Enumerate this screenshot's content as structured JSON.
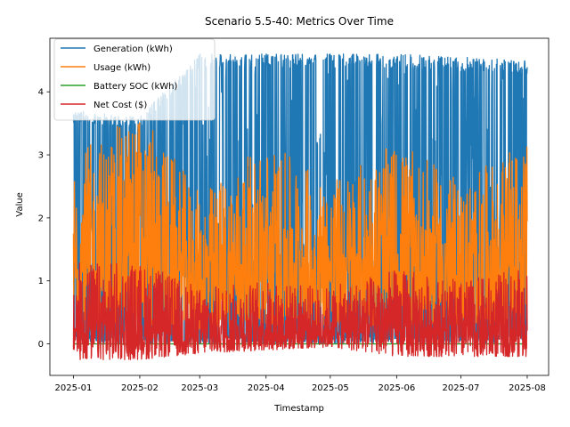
{
  "chart_data": {
    "type": "line",
    "title": "Scenario 5.5-40: Metrics Over Time",
    "xlabel": "Timestamp",
    "ylabel": "Value",
    "x_range": [
      "2025-01-01",
      "2025-08-01"
    ],
    "xlim": [
      "2024-12-21",
      "2025-08-11"
    ],
    "ylim": [
      -0.5,
      4.85
    ],
    "x_ticks": [
      {
        "date": "2025-01-01",
        "label": "2025-01"
      },
      {
        "date": "2025-02-01",
        "label": "2025-02"
      },
      {
        "date": "2025-03-01",
        "label": "2025-03"
      },
      {
        "date": "2025-04-01",
        "label": "2025-04"
      },
      {
        "date": "2025-05-01",
        "label": "2025-05"
      },
      {
        "date": "2025-06-01",
        "label": "2025-06"
      },
      {
        "date": "2025-07-01",
        "label": "2025-07"
      },
      {
        "date": "2025-08-01",
        "label": "2025-08"
      }
    ],
    "y_ticks": [
      {
        "value": 0,
        "label": "0"
      },
      {
        "value": 1,
        "label": "1"
      },
      {
        "value": 2,
        "label": "2"
      },
      {
        "value": 3,
        "label": "3"
      },
      {
        "value": 4,
        "label": "4"
      }
    ],
    "grid": false,
    "legend_position": "top-left",
    "series": [
      {
        "name": "Generation (kWh)",
        "color": "#1f77b4",
        "sampling": "monthly envelope of a dense hourly-like signal",
        "x": [
          "2025-01-01",
          "2025-02-01",
          "2025-03-01",
          "2025-04-01",
          "2025-05-01",
          "2025-06-01",
          "2025-07-01",
          "2025-08-01"
        ],
        "y_min": [
          0.0,
          0.0,
          0.0,
          0.0,
          0.0,
          0.0,
          0.0,
          0.0
        ],
        "y_max": [
          3.7,
          3.6,
          4.6,
          4.6,
          4.6,
          4.6,
          4.55,
          4.5
        ]
      },
      {
        "name": "Usage (kWh)",
        "color": "#ff7f0e",
        "sampling": "monthly envelope of a dense hourly-like signal",
        "x": [
          "2025-01-01",
          "2025-02-01",
          "2025-03-01",
          "2025-04-01",
          "2025-05-01",
          "2025-06-01",
          "2025-07-01",
          "2025-08-01"
        ],
        "y_min": [
          0.3,
          0.3,
          0.2,
          0.3,
          0.3,
          0.3,
          0.3,
          0.3
        ],
        "y_max": [
          3.0,
          3.7,
          2.4,
          3.2,
          2.6,
          3.2,
          2.6,
          3.2
        ]
      },
      {
        "name": "Battery SOC (kWh)",
        "color": "#2ca02c",
        "sampling": "flat at zero, hidden beneath other series",
        "x": [
          "2025-01-01",
          "2025-08-01"
        ],
        "y": [
          0.0,
          0.0
        ]
      },
      {
        "name": "Net Cost ($)",
        "color": "#d62728",
        "sampling": "monthly envelope of a dense hourly-like signal",
        "x": [
          "2025-01-01",
          "2025-02-01",
          "2025-03-01",
          "2025-04-01",
          "2025-05-01",
          "2025-06-01",
          "2025-07-01",
          "2025-08-01"
        ],
        "y_min": [
          -0.25,
          -0.25,
          -0.15,
          -0.1,
          -0.05,
          -0.2,
          -0.2,
          -0.2
        ],
        "y_max": [
          1.3,
          1.3,
          0.9,
          1.0,
          0.9,
          1.2,
          1.0,
          1.2
        ]
      }
    ]
  }
}
